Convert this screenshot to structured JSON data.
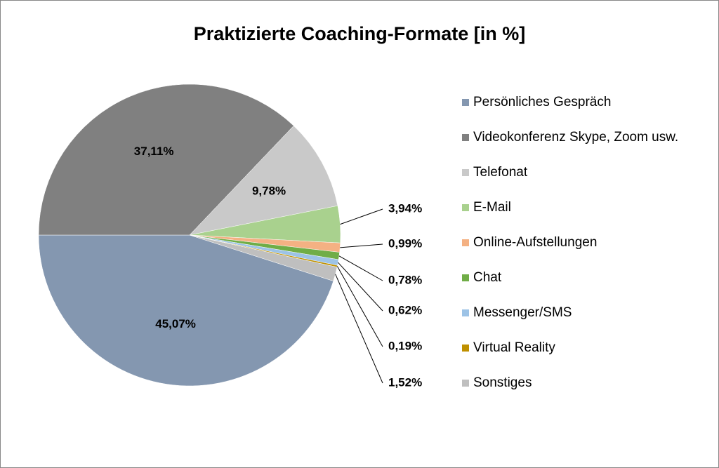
{
  "chart_data": {
    "type": "pie",
    "title": "Praktizierte Coaching-Formate [in %]",
    "categories": [
      "Persönliches Gespräch",
      "Videokonferenz Skype, Zoom usw.",
      "Telefonat",
      "E-Mail",
      "Online-Aufstellungen",
      "Chat",
      "Messenger/SMS",
      "Virtual Reality",
      "Sonstiges"
    ],
    "values": [
      45.07,
      37.11,
      9.78,
      3.94,
      0.99,
      0.78,
      0.62,
      0.19,
      1.52
    ],
    "value_labels": [
      "45,07%",
      "37,11%",
      "9,78%",
      "3,94%",
      "0,99%",
      "0,78%",
      "0,62%",
      "0,19%",
      "1,52%"
    ],
    "colors": [
      "#8497b0",
      "#808080",
      "#c9c9c9",
      "#a9d18e",
      "#f4b183",
      "#70ad47",
      "#9dc3e6",
      "#bf9000",
      "#bfbfbf"
    ],
    "legend": "right"
  }
}
